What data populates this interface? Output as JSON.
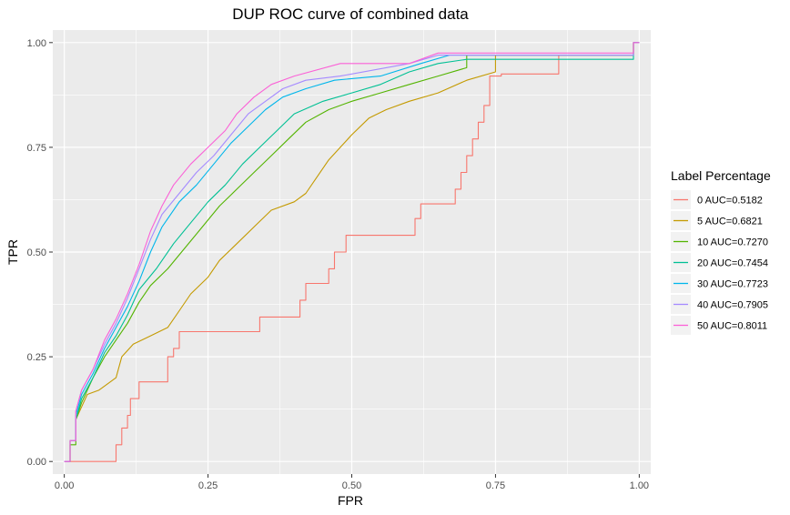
{
  "chart_data": {
    "type": "line",
    "title": "DUP ROC curve of combined data",
    "xlabel": "FPR",
    "ylabel": "TPR",
    "xlim": [
      -0.02,
      1.02
    ],
    "ylim": [
      -0.03,
      1.03
    ],
    "xticks": [
      0.0,
      0.25,
      0.5,
      0.75,
      1.0
    ],
    "xtick_labels": [
      "0.00",
      "0.25",
      "0.50",
      "0.75",
      "1.00"
    ],
    "yticks": [
      0.0,
      0.25,
      0.5,
      0.75,
      1.0
    ],
    "ytick_labels": [
      "0.00",
      "0.25",
      "0.50",
      "0.75",
      "1.00"
    ],
    "grid": true,
    "legend_title": "Label Percentage",
    "legend_position": "right",
    "series": [
      {
        "name": "0 AUC=0.5182",
        "color": "#F8766D",
        "points": [
          [
            0,
            0
          ],
          [
            0.09,
            0
          ],
          [
            0.09,
            0.04
          ],
          [
            0.1,
            0.04
          ],
          [
            0.1,
            0.08
          ],
          [
            0.11,
            0.08
          ],
          [
            0.11,
            0.11
          ],
          [
            0.115,
            0.11
          ],
          [
            0.115,
            0.15
          ],
          [
            0.13,
            0.15
          ],
          [
            0.13,
            0.19
          ],
          [
            0.18,
            0.19
          ],
          [
            0.18,
            0.25
          ],
          [
            0.19,
            0.25
          ],
          [
            0.19,
            0.27
          ],
          [
            0.2,
            0.27
          ],
          [
            0.2,
            0.31
          ],
          [
            0.34,
            0.31
          ],
          [
            0.34,
            0.345
          ],
          [
            0.41,
            0.345
          ],
          [
            0.41,
            0.385
          ],
          [
            0.42,
            0.385
          ],
          [
            0.42,
            0.425
          ],
          [
            0.46,
            0.425
          ],
          [
            0.46,
            0.46
          ],
          [
            0.47,
            0.46
          ],
          [
            0.47,
            0.5
          ],
          [
            0.49,
            0.5
          ],
          [
            0.49,
            0.54
          ],
          [
            0.61,
            0.54
          ],
          [
            0.61,
            0.58
          ],
          [
            0.62,
            0.58
          ],
          [
            0.62,
            0.615
          ],
          [
            0.68,
            0.615
          ],
          [
            0.68,
            0.65
          ],
          [
            0.69,
            0.65
          ],
          [
            0.69,
            0.69
          ],
          [
            0.7,
            0.69
          ],
          [
            0.7,
            0.73
          ],
          [
            0.71,
            0.73
          ],
          [
            0.71,
            0.77
          ],
          [
            0.72,
            0.77
          ],
          [
            0.72,
            0.81
          ],
          [
            0.73,
            0.81
          ],
          [
            0.73,
            0.85
          ],
          [
            0.74,
            0.85
          ],
          [
            0.74,
            0.92
          ],
          [
            0.76,
            0.92
          ],
          [
            0.76,
            0.925
          ],
          [
            0.86,
            0.925
          ],
          [
            0.86,
            0.97
          ],
          [
            0.99,
            0.97
          ],
          [
            0.99,
            1.0
          ],
          [
            1.0,
            1.0
          ]
        ]
      },
      {
        "name": "5 AUC=0.6821",
        "color": "#C49A00",
        "points": [
          [
            0,
            0
          ],
          [
            0.01,
            0
          ],
          [
            0.01,
            0.05
          ],
          [
            0.02,
            0.05
          ],
          [
            0.02,
            0.1
          ],
          [
            0.03,
            0.13
          ],
          [
            0.04,
            0.16
          ],
          [
            0.06,
            0.17
          ],
          [
            0.08,
            0.19
          ],
          [
            0.09,
            0.2
          ],
          [
            0.1,
            0.25
          ],
          [
            0.12,
            0.28
          ],
          [
            0.15,
            0.3
          ],
          [
            0.18,
            0.32
          ],
          [
            0.2,
            0.36
          ],
          [
            0.22,
            0.4
          ],
          [
            0.25,
            0.44
          ],
          [
            0.27,
            0.48
          ],
          [
            0.3,
            0.52
          ],
          [
            0.33,
            0.56
          ],
          [
            0.36,
            0.6
          ],
          [
            0.4,
            0.62
          ],
          [
            0.42,
            0.64
          ],
          [
            0.44,
            0.68
          ],
          [
            0.46,
            0.72
          ],
          [
            0.48,
            0.75
          ],
          [
            0.5,
            0.78
          ],
          [
            0.53,
            0.82
          ],
          [
            0.56,
            0.84
          ],
          [
            0.6,
            0.86
          ],
          [
            0.65,
            0.88
          ],
          [
            0.7,
            0.91
          ],
          [
            0.75,
            0.93
          ],
          [
            0.75,
            0.97
          ],
          [
            0.99,
            0.97
          ],
          [
            0.99,
            1.0
          ],
          [
            1.0,
            1.0
          ]
        ]
      },
      {
        "name": "10 AUC=0.7270",
        "color": "#53B400",
        "points": [
          [
            0,
            0
          ],
          [
            0.01,
            0
          ],
          [
            0.01,
            0.04
          ],
          [
            0.02,
            0.04
          ],
          [
            0.02,
            0.1
          ],
          [
            0.03,
            0.14
          ],
          [
            0.05,
            0.2
          ],
          [
            0.07,
            0.25
          ],
          [
            0.09,
            0.29
          ],
          [
            0.11,
            0.33
          ],
          [
            0.13,
            0.38
          ],
          [
            0.15,
            0.42
          ],
          [
            0.18,
            0.46
          ],
          [
            0.21,
            0.51
          ],
          [
            0.24,
            0.56
          ],
          [
            0.27,
            0.61
          ],
          [
            0.3,
            0.65
          ],
          [
            0.33,
            0.69
          ],
          [
            0.36,
            0.73
          ],
          [
            0.39,
            0.77
          ],
          [
            0.42,
            0.81
          ],
          [
            0.46,
            0.84
          ],
          [
            0.5,
            0.86
          ],
          [
            0.55,
            0.88
          ],
          [
            0.6,
            0.9
          ],
          [
            0.65,
            0.92
          ],
          [
            0.7,
            0.94
          ],
          [
            0.7,
            0.97
          ],
          [
            0.99,
            0.97
          ],
          [
            0.99,
            1.0
          ],
          [
            1.0,
            1.0
          ]
        ]
      },
      {
        "name": "20 AUC=0.7454",
        "color": "#00C094",
        "points": [
          [
            0,
            0
          ],
          [
            0.01,
            0
          ],
          [
            0.01,
            0.05
          ],
          [
            0.02,
            0.05
          ],
          [
            0.02,
            0.1
          ],
          [
            0.03,
            0.15
          ],
          [
            0.05,
            0.2
          ],
          [
            0.07,
            0.26
          ],
          [
            0.09,
            0.3
          ],
          [
            0.11,
            0.35
          ],
          [
            0.13,
            0.41
          ],
          [
            0.16,
            0.46
          ],
          [
            0.19,
            0.52
          ],
          [
            0.22,
            0.57
          ],
          [
            0.25,
            0.62
          ],
          [
            0.28,
            0.66
          ],
          [
            0.31,
            0.71
          ],
          [
            0.34,
            0.75
          ],
          [
            0.37,
            0.79
          ],
          [
            0.4,
            0.83
          ],
          [
            0.45,
            0.86
          ],
          [
            0.5,
            0.88
          ],
          [
            0.55,
            0.9
          ],
          [
            0.6,
            0.93
          ],
          [
            0.65,
            0.95
          ],
          [
            0.7,
            0.96
          ],
          [
            0.99,
            0.96
          ],
          [
            0.99,
            1.0
          ],
          [
            1.0,
            1.0
          ]
        ]
      },
      {
        "name": "30 AUC=0.7723",
        "color": "#00B6EB",
        "points": [
          [
            0,
            0
          ],
          [
            0.01,
            0
          ],
          [
            0.01,
            0.05
          ],
          [
            0.02,
            0.05
          ],
          [
            0.02,
            0.11
          ],
          [
            0.03,
            0.16
          ],
          [
            0.05,
            0.21
          ],
          [
            0.07,
            0.27
          ],
          [
            0.09,
            0.32
          ],
          [
            0.11,
            0.37
          ],
          [
            0.13,
            0.43
          ],
          [
            0.15,
            0.5
          ],
          [
            0.17,
            0.56
          ],
          [
            0.2,
            0.62
          ],
          [
            0.23,
            0.66
          ],
          [
            0.26,
            0.71
          ],
          [
            0.29,
            0.76
          ],
          [
            0.32,
            0.8
          ],
          [
            0.35,
            0.84
          ],
          [
            0.38,
            0.87
          ],
          [
            0.42,
            0.89
          ],
          [
            0.47,
            0.91
          ],
          [
            0.55,
            0.92
          ],
          [
            0.62,
            0.95
          ],
          [
            0.67,
            0.97
          ],
          [
            0.99,
            0.97
          ],
          [
            0.99,
            1.0
          ],
          [
            1.0,
            1.0
          ]
        ]
      },
      {
        "name": "40 AUC=0.7905",
        "color": "#A58AFF",
        "points": [
          [
            0,
            0
          ],
          [
            0.01,
            0
          ],
          [
            0.01,
            0.05
          ],
          [
            0.02,
            0.05
          ],
          [
            0.02,
            0.12
          ],
          [
            0.03,
            0.17
          ],
          [
            0.05,
            0.22
          ],
          [
            0.07,
            0.28
          ],
          [
            0.09,
            0.33
          ],
          [
            0.11,
            0.39
          ],
          [
            0.13,
            0.46
          ],
          [
            0.15,
            0.53
          ],
          [
            0.17,
            0.59
          ],
          [
            0.2,
            0.64
          ],
          [
            0.23,
            0.69
          ],
          [
            0.26,
            0.73
          ],
          [
            0.29,
            0.78
          ],
          [
            0.32,
            0.83
          ],
          [
            0.35,
            0.86
          ],
          [
            0.38,
            0.89
          ],
          [
            0.42,
            0.91
          ],
          [
            0.48,
            0.92
          ],
          [
            0.6,
            0.95
          ],
          [
            0.65,
            0.97
          ],
          [
            0.99,
            0.97
          ],
          [
            0.99,
            1.0
          ],
          [
            1.0,
            1.0
          ]
        ]
      },
      {
        "name": "50 AUC=0.8011",
        "color": "#FB61D7",
        "points": [
          [
            0,
            0
          ],
          [
            0.01,
            0
          ],
          [
            0.01,
            0.05
          ],
          [
            0.02,
            0.05
          ],
          [
            0.02,
            0.12
          ],
          [
            0.03,
            0.17
          ],
          [
            0.05,
            0.22
          ],
          [
            0.07,
            0.29
          ],
          [
            0.09,
            0.34
          ],
          [
            0.11,
            0.4
          ],
          [
            0.13,
            0.47
          ],
          [
            0.15,
            0.55
          ],
          [
            0.17,
            0.61
          ],
          [
            0.19,
            0.66
          ],
          [
            0.22,
            0.71
          ],
          [
            0.25,
            0.75
          ],
          [
            0.28,
            0.79
          ],
          [
            0.3,
            0.83
          ],
          [
            0.33,
            0.87
          ],
          [
            0.36,
            0.9
          ],
          [
            0.4,
            0.92
          ],
          [
            0.48,
            0.95
          ],
          [
            0.6,
            0.95
          ],
          [
            0.65,
            0.975
          ],
          [
            0.99,
            0.975
          ],
          [
            0.99,
            1.0
          ],
          [
            1.0,
            1.0
          ]
        ]
      }
    ]
  }
}
